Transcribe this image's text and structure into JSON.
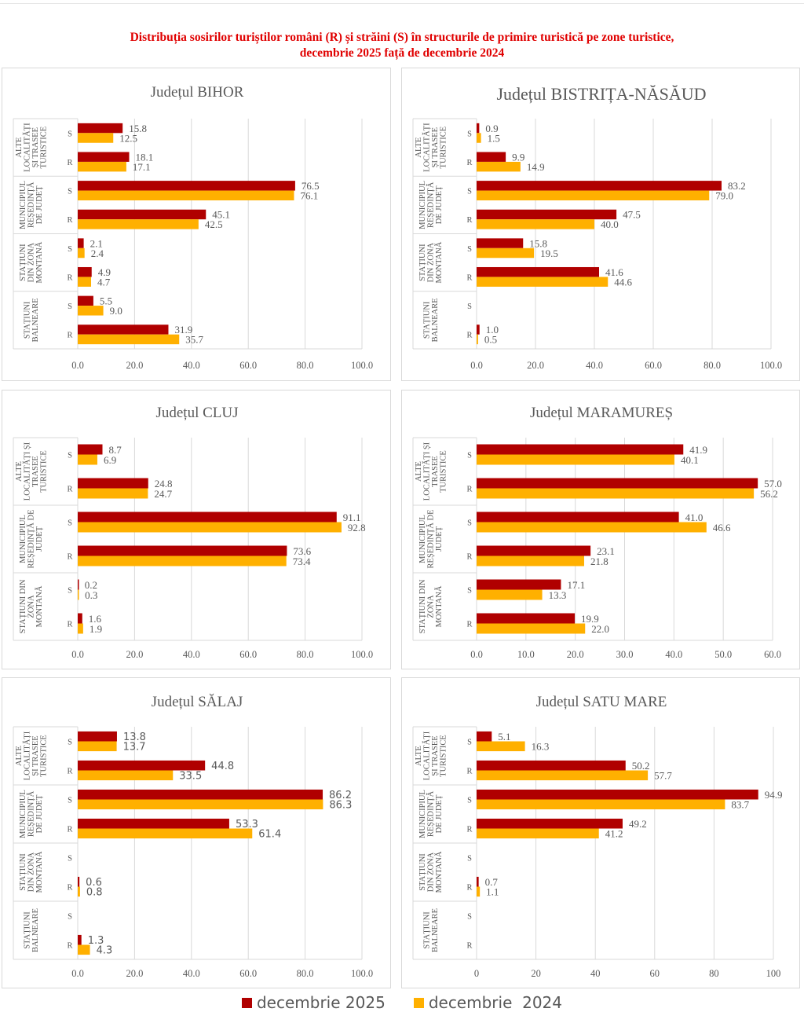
{
  "title_line1": "Distribuția sosirilor turiștilor români (R) și străini (S) în structurile de primire turistică pe zone turistice,",
  "title_line2": "decembrie 2025 față de decembrie 2024",
  "colors": {
    "dec2025": "#b00000",
    "dec2024": "#ffb000",
    "grid": "#d9d9d9",
    "text": "#595959"
  },
  "legend": [
    {
      "label": "decembrie 2025",
      "color": "#b00000"
    },
    {
      "label": "decembrie  2024",
      "color": "#ffb000"
    }
  ],
  "chart_data": [
    {
      "type": "bar",
      "title": "Județul BIHOR",
      "xlim": [
        0,
        100
      ],
      "ticks": [
        "0.0",
        "20.0",
        "40.0",
        "60.0",
        "80.0",
        "100.0"
      ],
      "tick_values": [
        0,
        20,
        40,
        60,
        80,
        100
      ],
      "groups": [
        {
          "label": "ALTE LOCALITĂȚI ȘI TRASEE TURISTICE",
          "lines": [
            "ALTE",
            "LOCALITĂȚI",
            "ȘI TRASEE",
            "TURISTICE"
          ],
          "rows": [
            {
              "cat": "S",
              "v2025": 15.8,
              "v2024": 12.5,
              "l2025": "15.8",
              "l2024": "12.5"
            },
            {
              "cat": "R",
              "v2025": 18.1,
              "v2024": 17.1,
              "l2025": "18.1",
              "l2024": "17.1"
            }
          ]
        },
        {
          "label": "MUNICIPIUL REȘEDINȚĂ DE JUDEȚ",
          "lines": [
            "MUNICIPIUL",
            "REȘEDINȚĂ",
            "DE JUDEȚ"
          ],
          "rows": [
            {
              "cat": "S",
              "v2025": 76.5,
              "v2024": 76.1,
              "l2025": "76.5",
              "l2024": "76.1"
            },
            {
              "cat": "R",
              "v2025": 45.1,
              "v2024": 42.5,
              "l2025": "45.1",
              "l2024": "42.5"
            }
          ]
        },
        {
          "label": "STAȚIUNI DIN ZONA MONTANĂ",
          "lines": [
            "STAȚIUNI",
            "DIN ZONA",
            "MONTANĂ"
          ],
          "rows": [
            {
              "cat": "S",
              "v2025": 2.1,
              "v2024": 2.4,
              "l2025": "2.1",
              "l2024": "2.4"
            },
            {
              "cat": "R",
              "v2025": 4.9,
              "v2024": 4.7,
              "l2025": "4.9",
              "l2024": "4.7"
            }
          ]
        },
        {
          "label": "STAȚIUNI BALNEARE",
          "lines": [
            "STAȚIUNI",
            "BALNEARE"
          ],
          "rows": [
            {
              "cat": "S",
              "v2025": 5.5,
              "v2024": 9.0,
              "l2025": "5.5",
              "l2024": "9.0"
            },
            {
              "cat": "R",
              "v2025": 31.9,
              "v2024": 35.7,
              "l2025": "31.9",
              "l2024": "35.7"
            }
          ]
        }
      ]
    },
    {
      "type": "bar",
      "title": "Județul BISTRIȚA-NĂSĂUD",
      "xlim": [
        0,
        100
      ],
      "ticks": [
        "0.0",
        "20.0",
        "40.0",
        "60.0",
        "80.0",
        "100.0"
      ],
      "tick_values": [
        0,
        20,
        40,
        60,
        80,
        100
      ],
      "groups": [
        {
          "label": "ALTE LOCALITĂȚI ȘI TRASEE TURISTICE",
          "lines": [
            "ALTE",
            "LOCALITĂȚI",
            "ȘI TRASEE",
            "TURISTICE"
          ],
          "rows": [
            {
              "cat": "S",
              "v2025": 0.9,
              "v2024": 1.5,
              "l2025": "0.9",
              "l2024": "1.5"
            },
            {
              "cat": "R",
              "v2025": 9.9,
              "v2024": 14.9,
              "l2025": "9.9",
              "l2024": "14.9"
            }
          ]
        },
        {
          "label": "MUNICIPIUL REȘEDINȚĂ DE JUDEȚ",
          "lines": [
            "MUNICIPIUL",
            "REȘEDINȚĂ",
            "DE JUDEȚ"
          ],
          "rows": [
            {
              "cat": "S",
              "v2025": 83.2,
              "v2024": 79.0,
              "l2025": "83.2",
              "l2024": "79.0"
            },
            {
              "cat": "R",
              "v2025": 47.5,
              "v2024": 40.0,
              "l2025": "47.5",
              "l2024": "40.0"
            }
          ]
        },
        {
          "label": "STAȚIUNI DIN ZONA MONTANĂ",
          "lines": [
            "STAȚIUNI",
            "DIN ZONA",
            "MONTANĂ"
          ],
          "rows": [
            {
              "cat": "S",
              "v2025": 15.8,
              "v2024": 19.5,
              "l2025": "15.8",
              "l2024": "19.5"
            },
            {
              "cat": "R",
              "v2025": 41.6,
              "v2024": 44.6,
              "l2025": "41.6",
              "l2024": "44.6"
            }
          ]
        },
        {
          "label": "STAȚIUNI BALNEARE",
          "lines": [
            "STAȚIUNI",
            "BALNEARE"
          ],
          "rows": [
            {
              "cat": "S",
              "v2025": null,
              "v2024": null,
              "l2025": "",
              "l2024": ""
            },
            {
              "cat": "R",
              "v2025": 1.0,
              "v2024": 0.5,
              "l2025": "1.0",
              "l2024": "0.5"
            }
          ]
        }
      ]
    },
    {
      "type": "bar",
      "title": "Județul CLUJ",
      "xlim": [
        0,
        100
      ],
      "ticks": [
        "0.0",
        "20.0",
        "40.0",
        "60.0",
        "80.0",
        "100.0"
      ],
      "tick_values": [
        0,
        20,
        40,
        60,
        80,
        100
      ],
      "groups": [
        {
          "label": "ALTE LOCALITĂȚI ȘI TRASEE TURISTICE",
          "lines": [
            "ALTE",
            "LOCALITĂȚI ȘI",
            "TRASEE",
            "TURISTICE"
          ],
          "rows": [
            {
              "cat": "S",
              "v2025": 8.7,
              "v2024": 6.9,
              "l2025": "8.7",
              "l2024": "6.9"
            },
            {
              "cat": "R",
              "v2025": 24.8,
              "v2024": 24.7,
              "l2025": "24.8",
              "l2024": "24.7"
            }
          ]
        },
        {
          "label": "MUNICIPIUL REȘEDINȚĂ DE JUDEȚ",
          "lines": [
            "MUNICIPIUL",
            "REȘEDINȚĂ DE",
            "JUDEȚ"
          ],
          "rows": [
            {
              "cat": "S",
              "v2025": 91.1,
              "v2024": 92.8,
              "l2025": "91.1",
              "l2024": "92.8"
            },
            {
              "cat": "R",
              "v2025": 73.6,
              "v2024": 73.4,
              "l2025": "73.6",
              "l2024": "73.4"
            }
          ]
        },
        {
          "label": "STAȚIUNI DIN ZONA MONTANĂ",
          "lines": [
            "STAȚIUNI DIN",
            "ZONA",
            "MONTANĂ"
          ],
          "rows": [
            {
              "cat": "S",
              "v2025": 0.2,
              "v2024": 0.3,
              "l2025": "0.2",
              "l2024": "0.3"
            },
            {
              "cat": "R",
              "v2025": 1.6,
              "v2024": 1.9,
              "l2025": "1.6",
              "l2024": "1.9"
            }
          ]
        }
      ]
    },
    {
      "type": "bar",
      "title": "Județul MARAMUREȘ",
      "xlim": [
        0,
        60
      ],
      "ticks": [
        "0.0",
        "10.0",
        "20.0",
        "30.0",
        "40.0",
        "50.0",
        "60.0"
      ],
      "tick_values": [
        0,
        10,
        20,
        30,
        40,
        50,
        60
      ],
      "groups": [
        {
          "label": "ALTE LOCALITĂȚI ȘI TRASEE TURISTICE",
          "lines": [
            "ALTE",
            "LOCALITĂȚI ȘI",
            "TRASEE",
            "TURISTICE"
          ],
          "rows": [
            {
              "cat": "S",
              "v2025": 41.9,
              "v2024": 40.1,
              "l2025": "41.9",
              "l2024": "40.1"
            },
            {
              "cat": "R",
              "v2025": 57.0,
              "v2024": 56.2,
              "l2025": "57.0",
              "l2024": "56.2"
            }
          ]
        },
        {
          "label": "MUNICIPIUL REȘEDINȚĂ DE JUDEȚ",
          "lines": [
            "MUNICIPIUL",
            "REȘEDINȚĂ DE",
            "JUDEȚ"
          ],
          "rows": [
            {
              "cat": "S",
              "v2025": 41.0,
              "v2024": 46.6,
              "l2025": "41.0",
              "l2024": "46.6"
            },
            {
              "cat": "R",
              "v2025": 23.1,
              "v2024": 21.8,
              "l2025": "23.1",
              "l2024": "21.8"
            }
          ]
        },
        {
          "label": "STAȚIUNI DIN ZONA MONTANĂ",
          "lines": [
            "STAȚIUNI DIN",
            "ZONA",
            "MONTANĂ"
          ],
          "rows": [
            {
              "cat": "S",
              "v2025": 17.1,
              "v2024": 13.3,
              "l2025": "17.1",
              "l2024": "13.3"
            },
            {
              "cat": "R",
              "v2025": 19.9,
              "v2024": 22.0,
              "l2025": "19.9",
              "l2024": "22.0"
            }
          ]
        }
      ]
    },
    {
      "type": "bar",
      "title": "Județul SĂLAJ",
      "xlim": [
        0,
        100
      ],
      "ticks": [
        "0.0",
        "20.0",
        "40.0",
        "60.0",
        "80.0",
        "100.0"
      ],
      "tick_values": [
        0,
        20,
        40,
        60,
        80,
        100
      ],
      "label_font": "sans",
      "groups": [
        {
          "label": "ALTE LOCALITĂȚI ȘI TRASEE TURISTICE",
          "lines": [
            "ALTE",
            "LOCALITĂȚI",
            "ȘI TRASEE",
            "TURISTICE"
          ],
          "rows": [
            {
              "cat": "S",
              "v2025": 13.8,
              "v2024": 13.7,
              "l2025": "13.8",
              "l2024": "13.7"
            },
            {
              "cat": "R",
              "v2025": 44.8,
              "v2024": 33.5,
              "l2025": "44.8",
              "l2024": "33.5"
            }
          ]
        },
        {
          "label": "MUNICIPIUL REȘEDINȚĂ DE JUDEȚ",
          "lines": [
            "MUNICIPIUL",
            "REȘEDINȚĂ",
            "DE JUDEȚ"
          ],
          "rows": [
            {
              "cat": "S",
              "v2025": 86.2,
              "v2024": 86.3,
              "l2025": "86.2",
              "l2024": "86.3"
            },
            {
              "cat": "R",
              "v2025": 53.3,
              "v2024": 61.4,
              "l2025": "53.3",
              "l2024": "61.4"
            }
          ]
        },
        {
          "label": "STAȚIUNI DIN ZONA MONTANĂ",
          "lines": [
            "STAȚIUNI",
            "DIN ZONA",
            "MONTANĂ"
          ],
          "rows": [
            {
              "cat": "S",
              "v2025": null,
              "v2024": null,
              "l2025": "",
              "l2024": ""
            },
            {
              "cat": "R",
              "v2025": 0.6,
              "v2024": 0.8,
              "l2025": "0.6",
              "l2024": "0.8"
            }
          ]
        },
        {
          "label": "STAȚIUNI BALNEARE",
          "lines": [
            "STAȚIUNI",
            "BALNEARE"
          ],
          "rows": [
            {
              "cat": "S",
              "v2025": null,
              "v2024": null,
              "l2025": "",
              "l2024": ""
            },
            {
              "cat": "R",
              "v2025": 1.3,
              "v2024": 4.3,
              "l2025": "1.3",
              "l2024": "4.3"
            }
          ]
        }
      ]
    },
    {
      "type": "bar",
      "title": "Județul SATU MARE",
      "xlim": [
        0,
        100
      ],
      "ticks": [
        "0",
        "20",
        "40",
        "60",
        "80",
        "100"
      ],
      "tick_values": [
        0,
        20,
        40,
        60,
        80,
        100
      ],
      "groups": [
        {
          "label": "ALTE LOCALITĂȚI ȘI TRASEE TURISTICE",
          "lines": [
            "ALTE",
            "LOCALITĂȚI",
            "ȘI TRASEE",
            "TURISTICE"
          ],
          "rows": [
            {
              "cat": "S",
              "v2025": 5.1,
              "v2024": 16.3,
              "l2025": "5.1",
              "l2024": "16.3"
            },
            {
              "cat": "R",
              "v2025": 50.2,
              "v2024": 57.7,
              "l2025": "50.2",
              "l2024": "57.7"
            }
          ]
        },
        {
          "label": "MUNICIPIUL REȘEDINȚĂ DE JUDEȚ",
          "lines": [
            "MUNICIPIUL",
            "REȘEDINȚĂ",
            "DE JUDEȚ"
          ],
          "rows": [
            {
              "cat": "S",
              "v2025": 94.9,
              "v2024": 83.7,
              "l2025": "94.9",
              "l2024": "83.7"
            },
            {
              "cat": "R",
              "v2025": 49.2,
              "v2024": 41.2,
              "l2025": "49.2",
              "l2024": "41.2"
            }
          ]
        },
        {
          "label": "STAȚIUNI DIN ZONA MONTANĂ",
          "lines": [
            "STAȚIUNI",
            "DIN ZONA",
            "MONTANĂ"
          ],
          "rows": [
            {
              "cat": "S",
              "v2025": null,
              "v2024": null,
              "l2025": "",
              "l2024": ""
            },
            {
              "cat": "R",
              "v2025": 0.7,
              "v2024": 1.1,
              "l2025": "0.7",
              "l2024": "1.1"
            }
          ]
        },
        {
          "label": "STAȚIUNI BALNEARE",
          "lines": [
            "STAȚIUNI",
            "BALNEARE"
          ],
          "rows": [
            {
              "cat": "S",
              "v2025": null,
              "v2024": null,
              "l2025": "",
              "l2024": ""
            },
            {
              "cat": "R",
              "v2025": null,
              "v2024": null,
              "l2025": "",
              "l2024": ""
            }
          ]
        }
      ]
    }
  ]
}
